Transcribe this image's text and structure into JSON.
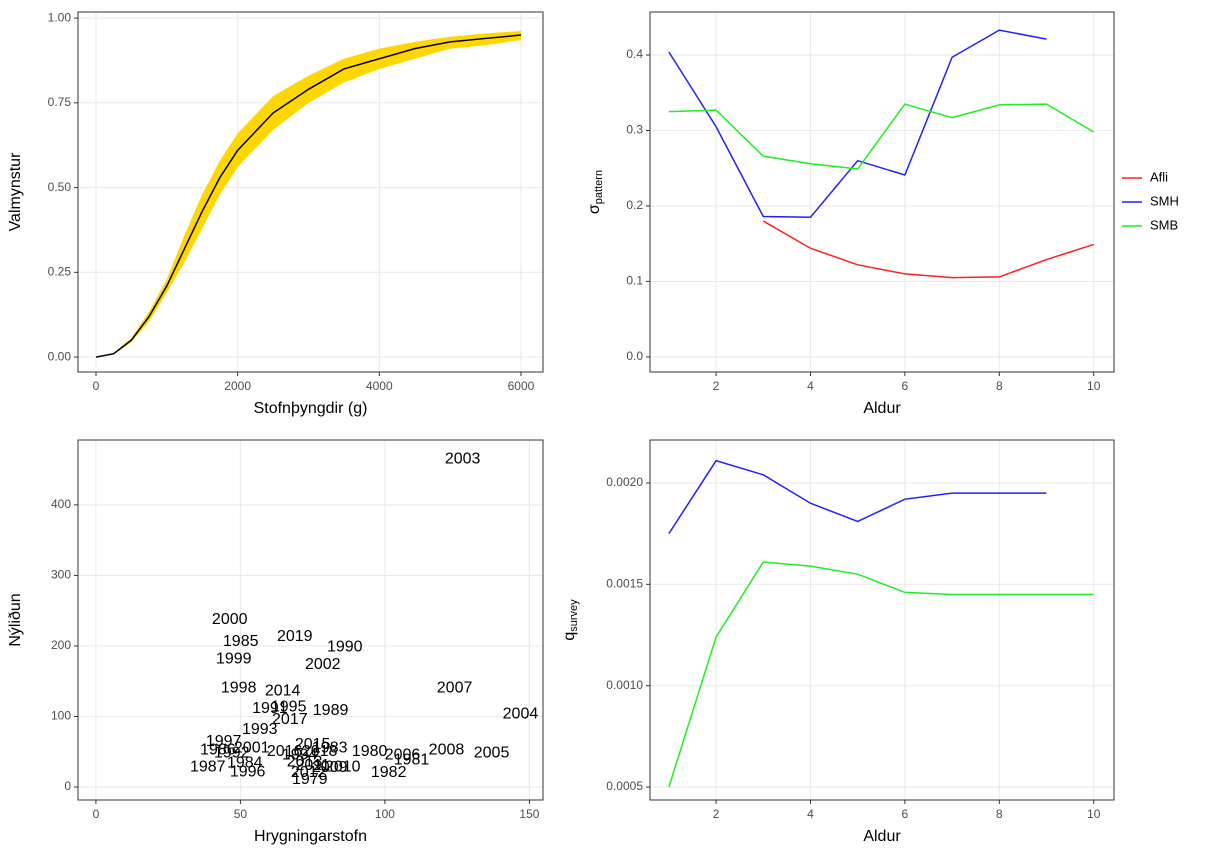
{
  "chart_data": [
    {
      "type": "line",
      "xlabel": "Stofnþyngdir (g)",
      "ylabel": "Valmynstur",
      "x": [
        0,
        250,
        500,
        750,
        1000,
        1250,
        1500,
        1750,
        2000,
        2500,
        3000,
        3500,
        4000,
        4500,
        5000,
        5500,
        6000
      ],
      "series": [
        {
          "color": "#000000",
          "values": [
            0,
            0.01,
            0.05,
            0.12,
            0.21,
            0.32,
            0.43,
            0.53,
            0.61,
            0.72,
            0.79,
            0.85,
            0.88,
            0.91,
            0.93,
            0.94,
            0.95
          ]
        }
      ],
      "band": {
        "color": "#ffd700",
        "lower": [
          0,
          0.008,
          0.044,
          0.105,
          0.19,
          0.28,
          0.38,
          0.48,
          0.56,
          0.67,
          0.75,
          0.81,
          0.85,
          0.88,
          0.91,
          0.92,
          0.935
        ],
        "upper": [
          0,
          0.012,
          0.056,
          0.135,
          0.23,
          0.36,
          0.48,
          0.58,
          0.66,
          0.77,
          0.83,
          0.88,
          0.91,
          0.93,
          0.945,
          0.955,
          0.962
        ]
      },
      "xlim": [
        -254,
        6311
      ],
      "xticks": [
        0,
        2000,
        4000,
        6000
      ],
      "ylim": [
        -0.044,
        1.018
      ],
      "yticks": [
        {
          "value": 0,
          "label": "0.00"
        },
        {
          "value": 0.25,
          "label": "0.25"
        },
        {
          "value": 0.5,
          "label": "0.50"
        },
        {
          "value": 0.75,
          "label": "0.75"
        },
        {
          "value": 1,
          "label": "1.00"
        }
      ],
      "grid": true
    },
    {
      "type": "line",
      "xlabel": "Aldur",
      "ylabel": "σ",
      "ylabel_sub": "pattern",
      "x": [
        1,
        2,
        3,
        4,
        5,
        6,
        7,
        8,
        9,
        10
      ],
      "series": [
        {
          "name": "Afli",
          "color": "#ff2020",
          "values": [
            null,
            null,
            0.18,
            0.144,
            0.122,
            0.11,
            0.105,
            0.106,
            0.129,
            0.149
          ]
        },
        {
          "name": "SMH",
          "color": "#2020ff",
          "values": [
            0.404,
            0.305,
            0.186,
            0.185,
            0.26,
            0.241,
            0.397,
            0.433,
            0.421,
            null
          ]
        },
        {
          "name": "SMB",
          "color": "#20ee20",
          "values": [
            0.325,
            0.327,
            0.266,
            0.256,
            0.249,
            0.335,
            0.317,
            0.334,
            0.335,
            0.298
          ]
        }
      ],
      "xlim": [
        0.6,
        10.43
      ],
      "xticks": [
        2,
        4,
        6,
        8,
        10
      ],
      "ylim": [
        -0.02,
        0.457
      ],
      "yticks": [
        {
          "value": 0,
          "label": "0.0"
        },
        {
          "value": 0.1,
          "label": "0.1"
        },
        {
          "value": 0.2,
          "label": "0.2"
        },
        {
          "value": 0.3,
          "label": "0.3"
        },
        {
          "value": 0.4,
          "label": "0.4"
        }
      ],
      "grid": true,
      "legend": "right"
    },
    {
      "type": "text-scatter",
      "xlabel": "Hrygningarstofn",
      "ylabel": "Nýliðun",
      "labels": [
        "2003",
        "2000",
        "1985",
        "1999",
        "2019",
        "1990",
        "2002",
        "2007",
        "2004",
        "1998",
        "2014",
        "1995",
        "1991",
        "1989",
        "2017",
        "1993",
        "1997",
        "2001",
        "1986",
        "1992",
        "2015",
        "1983",
        "2016",
        "1994",
        "2018",
        "2013",
        "2010",
        "2009",
        "1980",
        "2006",
        "1981",
        "2008",
        "2005",
        "1982",
        "1987",
        "1984",
        "1996",
        "1979",
        "2012",
        "2011"
      ],
      "x": [
        126.9,
        46.3,
        50.1,
        47.7,
        68.8,
        86.1,
        78.5,
        124.1,
        146.9,
        49.4,
        64.6,
        66.7,
        60.2,
        81.2,
        67.1,
        56.7,
        44.2,
        53.9,
        42.2,
        47,
        75,
        80.9,
        65.3,
        70.5,
        77.4,
        72.2,
        85.4,
        80.9,
        94.7,
        106.1,
        109.2,
        121.3,
        136.9,
        101.3,
        38.7,
        51.5,
        52.5,
        74,
        73.6,
        75
      ],
      "y": [
        465,
        237,
        206,
        181,
        213,
        198,
        173,
        140,
        103,
        140,
        136,
        113,
        111,
        108,
        95,
        81,
        64,
        55,
        52,
        48,
        60,
        55,
        50,
        45,
        50,
        35,
        28,
        27,
        50,
        45,
        38,
        52,
        48,
        20,
        28,
        34,
        21,
        10,
        20,
        30
      ],
      "xlim": [
        -6.2,
        154.7
      ],
      "xticks": [
        0,
        50,
        100,
        150
      ],
      "ylim": [
        -18.4,
        492
      ],
      "yticks": [
        0,
        100,
        200,
        300,
        400
      ],
      "grid": true
    },
    {
      "type": "line",
      "xlabel": "Aldur",
      "ylabel": "q",
      "ylabel_sub": "survey",
      "x": [
        1,
        2,
        3,
        4,
        5,
        6,
        7,
        8,
        9,
        10
      ],
      "series": [
        {
          "color": "#2020ff",
          "values": [
            0.00175,
            0.00211,
            0.00204,
            0.0019,
            0.00181,
            0.00192,
            0.00195,
            0.00195,
            0.00195,
            null
          ]
        },
        {
          "color": "#20ee20",
          "values": [
            0.0005,
            0.00124,
            0.00161,
            0.00159,
            0.00155,
            0.00146,
            0.00145,
            0.00145,
            0.00145,
            0.00145
          ]
        }
      ],
      "xlim": [
        0.6,
        10.43
      ],
      "xticks": [
        2,
        4,
        6,
        8,
        10
      ],
      "ylim": [
        0.000436,
        0.002212
      ],
      "yticks": [
        {
          "value": 0.0005,
          "label": "0.0005"
        },
        {
          "value": 0.001,
          "label": "0.0010"
        },
        {
          "value": 0.0015,
          "label": "0.0015"
        },
        {
          "value": 0.002,
          "label": "0.0020"
        }
      ],
      "grid": true
    }
  ]
}
